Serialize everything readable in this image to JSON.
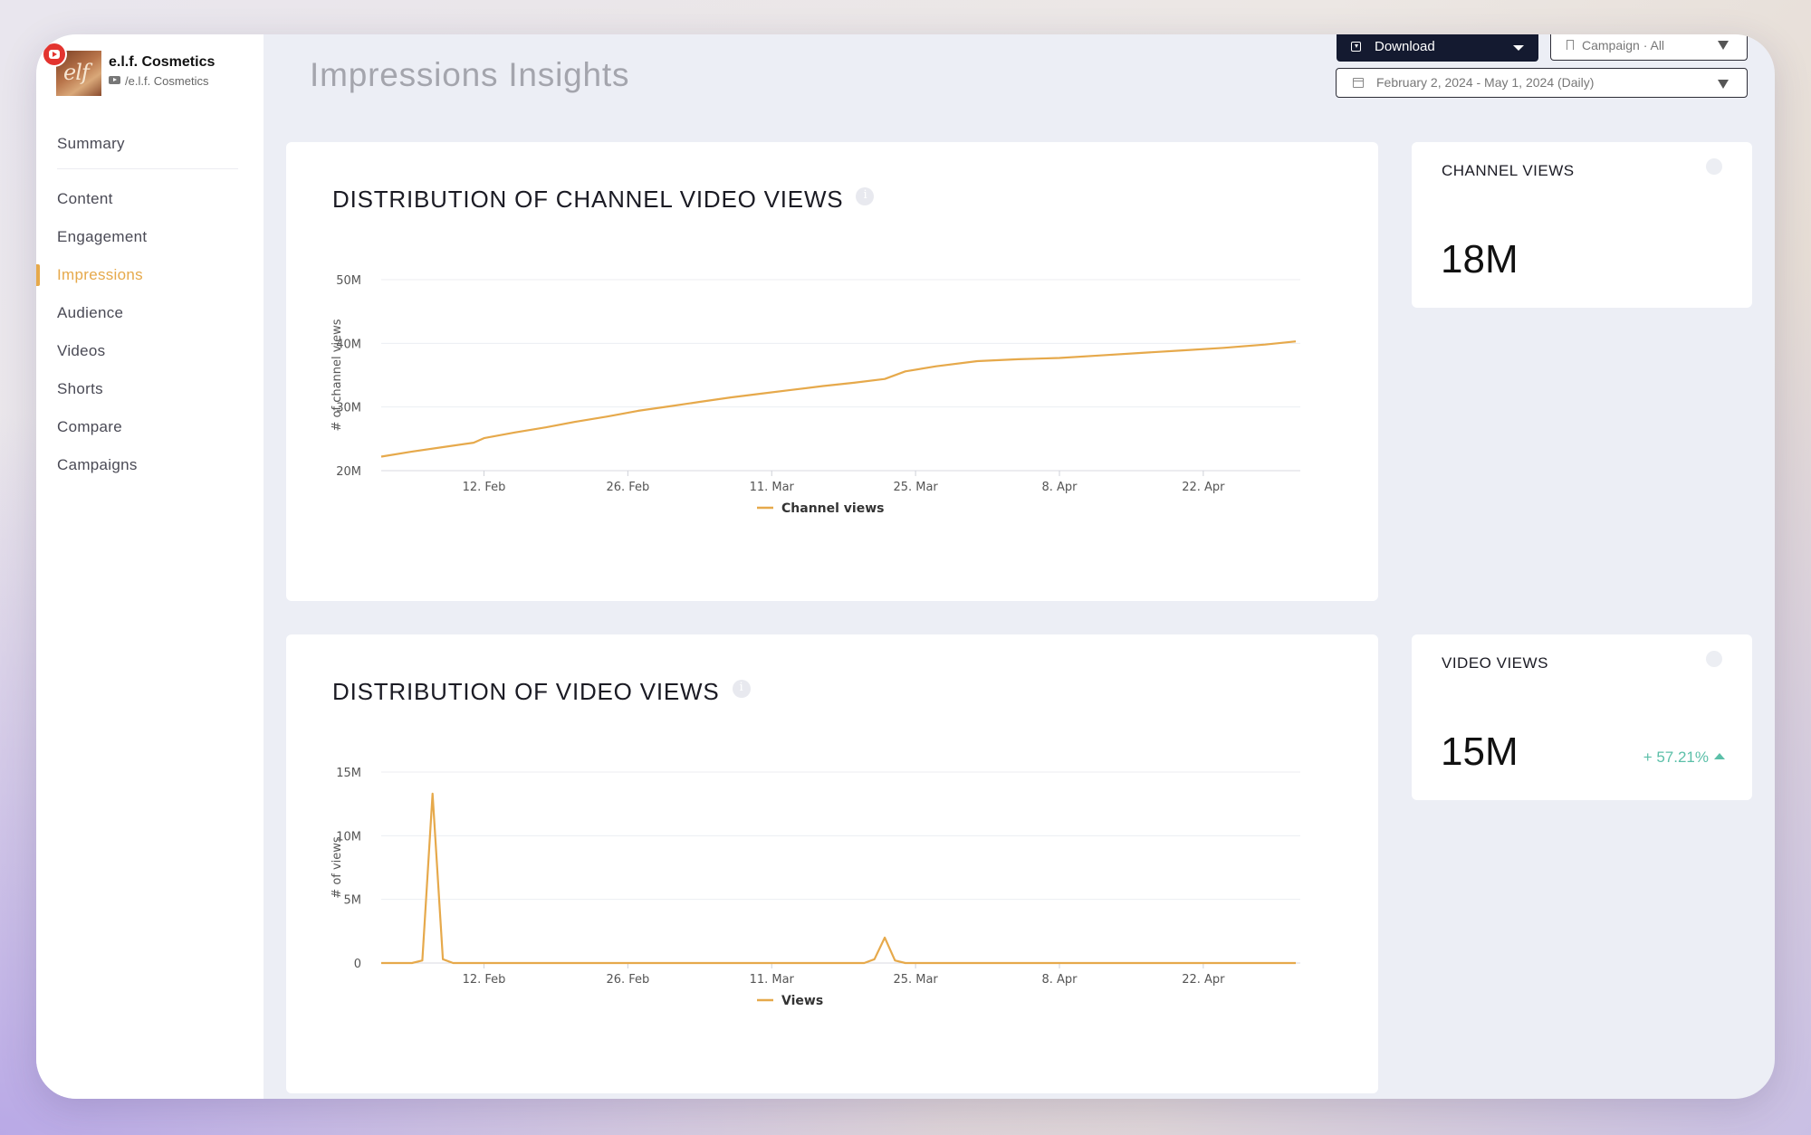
{
  "profile": {
    "name": "e.l.f. Cosmetics",
    "handle": "/e.l.f. Cosmetics",
    "avatar_text": "elf"
  },
  "nav": {
    "summary": "Summary",
    "items": [
      "Content",
      "Engagement",
      "Impressions",
      "Audience",
      "Videos",
      "Shorts",
      "Compare",
      "Campaigns"
    ],
    "active": "Impressions"
  },
  "header": {
    "title": "Impressions Insights",
    "download_label": "Download",
    "campaign_label": "Campaign · All",
    "date_range": "February 2, 2024 - May 1, 2024 (Daily)"
  },
  "colors": {
    "accent": "#e6a94b",
    "positive": "#5bbfa8",
    "dark": "#141a30"
  },
  "icons": [
    "youtube-icon",
    "download-icon",
    "chevron-down-icon",
    "bookmark-icon",
    "calendar-icon",
    "info-icon",
    "arrow-up-icon"
  ],
  "stats": {
    "channel_views": {
      "label": "CHANNEL VIEWS",
      "value": "18M"
    },
    "video_views": {
      "label": "VIDEO VIEWS",
      "value": "15M",
      "change": "+ 57.21%"
    }
  },
  "chart_data": [
    {
      "type": "line",
      "title": "DISTRIBUTION OF CHANNEL VIDEO VIEWS",
      "ylabel": "# of channel views",
      "xlabel": "",
      "ylim": [
        20,
        50
      ],
      "yticks": [
        "20M",
        "30M",
        "40M",
        "50M"
      ],
      "xticks": [
        "12. Feb",
        "26. Feb",
        "11. Mar",
        "25. Mar",
        "8. Apr",
        "22. Apr"
      ],
      "legend": "bottom",
      "grid": true,
      "series": [
        {
          "name": "Channel views",
          "color": "#e6a94b",
          "points": [
            [
              "2024-02-02",
              22.2
            ],
            [
              "2024-02-05",
              23.0
            ],
            [
              "2024-02-08",
              23.7
            ],
            [
              "2024-02-11",
              24.4
            ],
            [
              "2024-02-12",
              25.1
            ],
            [
              "2024-02-15",
              26.0
            ],
            [
              "2024-02-18",
              26.8
            ],
            [
              "2024-02-21",
              27.7
            ],
            [
              "2024-02-24",
              28.5
            ],
            [
              "2024-02-27",
              29.4
            ],
            [
              "2024-03-01",
              30.1
            ],
            [
              "2024-03-04",
              30.8
            ],
            [
              "2024-03-07",
              31.5
            ],
            [
              "2024-03-10",
              32.1
            ],
            [
              "2024-03-13",
              32.7
            ],
            [
              "2024-03-16",
              33.3
            ],
            [
              "2024-03-19",
              33.8
            ],
            [
              "2024-03-22",
              34.4
            ],
            [
              "2024-03-24",
              35.6
            ],
            [
              "2024-03-27",
              36.4
            ],
            [
              "2024-03-31",
              37.2
            ],
            [
              "2024-04-04",
              37.5
            ],
            [
              "2024-04-08",
              37.7
            ],
            [
              "2024-04-12",
              38.1
            ],
            [
              "2024-04-16",
              38.5
            ],
            [
              "2024-04-20",
              38.9
            ],
            [
              "2024-04-24",
              39.3
            ],
            [
              "2024-04-28",
              39.8
            ],
            [
              "2024-05-01",
              40.3
            ]
          ]
        }
      ]
    },
    {
      "type": "line",
      "title": "DISTRIBUTION OF VIDEO VIEWS",
      "ylabel": "# of views",
      "xlabel": "",
      "ylim": [
        0,
        15
      ],
      "yticks": [
        "0",
        "5M",
        "10M",
        "15M"
      ],
      "xticks": [
        "12. Feb",
        "26. Feb",
        "11. Mar",
        "25. Mar",
        "8. Apr",
        "22. Apr"
      ],
      "legend": "bottom",
      "grid": true,
      "series": [
        {
          "name": "Views",
          "color": "#e6a94b",
          "points": [
            [
              "2024-02-02",
              0
            ],
            [
              "2024-02-05",
              0
            ],
            [
              "2024-02-06",
              0.2
            ],
            [
              "2024-02-07",
              13.3
            ],
            [
              "2024-02-08",
              0.3
            ],
            [
              "2024-02-09",
              0
            ],
            [
              "2024-03-20",
              0
            ],
            [
              "2024-03-21",
              0.3
            ],
            [
              "2024-03-22",
              2.0
            ],
            [
              "2024-03-23",
              0.2
            ],
            [
              "2024-03-24",
              0
            ],
            [
              "2024-05-01",
              0
            ]
          ]
        }
      ]
    }
  ]
}
